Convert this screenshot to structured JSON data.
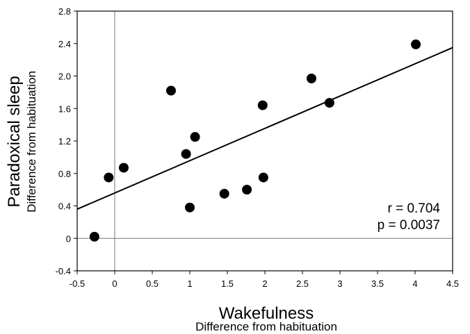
{
  "chart_data": {
    "type": "scatter",
    "title": "",
    "xlabel": "Wakefulness",
    "xlabel_sub": "Difference from habituation",
    "ylabel": "Paradoxical sleep",
    "ylabel_sub": "Difference from habituation",
    "xlim": [
      -0.5,
      4.5
    ],
    "ylim": [
      -0.4,
      2.8
    ],
    "xticks": [
      "-0.5",
      "0",
      "0.5",
      "1",
      "1.5",
      "2",
      "2.5",
      "3",
      "3.5",
      "4",
      "4.5"
    ],
    "yticks": [
      "-0.4",
      "0",
      "0.4",
      "0.8",
      "1.2",
      "1.6",
      "2.0",
      "2.4",
      "2.8"
    ],
    "grid": false,
    "reference_lines": {
      "x": 0,
      "y": 0
    },
    "points": [
      {
        "x": -0.27,
        "y": 0.02
      },
      {
        "x": -0.08,
        "y": 0.75
      },
      {
        "x": 0.12,
        "y": 0.87
      },
      {
        "x": 0.75,
        "y": 1.82
      },
      {
        "x": 0.95,
        "y": 1.04
      },
      {
        "x": 1.0,
        "y": 0.38
      },
      {
        "x": 1.07,
        "y": 1.25
      },
      {
        "x": 1.46,
        "y": 0.55
      },
      {
        "x": 1.76,
        "y": 0.6
      },
      {
        "x": 1.97,
        "y": 1.64
      },
      {
        "x": 1.98,
        "y": 0.75
      },
      {
        "x": 2.62,
        "y": 1.97
      },
      {
        "x": 2.86,
        "y": 1.67
      },
      {
        "x": 4.01,
        "y": 2.39
      }
    ],
    "regression_line": {
      "x": [
        -0.5,
        4.5
      ],
      "y": [
        0.36,
        2.35
      ]
    },
    "annotations": [
      "r = 0.704",
      "p = 0.0037"
    ]
  }
}
